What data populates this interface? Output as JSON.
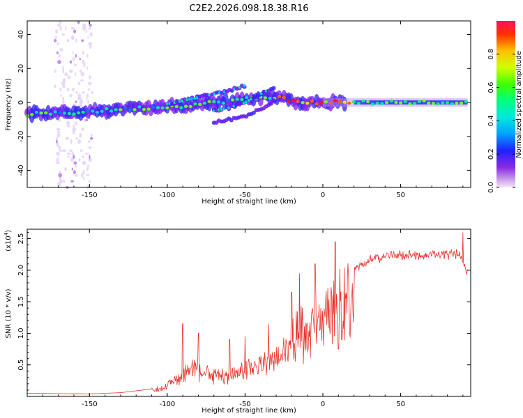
{
  "title": "C2E2.2026.098.18.38.R16",
  "chart_data": [
    {
      "type": "heatmap",
      "name": "spectrogram",
      "xlabel": "Height of straight line (km)",
      "ylabel": "Frequency (Hz)",
      "xlim": [
        -190,
        95
      ],
      "ylim": [
        -50,
        48
      ],
      "xticks": [
        -150,
        -100,
        -50,
        0,
        50
      ],
      "yticks": [
        -40,
        -20,
        0,
        20,
        40
      ],
      "colorbar": {
        "label": "Normalized spectral amplitude",
        "range": [
          0,
          1
        ],
        "ticks": [
          0.0,
          0.2,
          0.4,
          0.6,
          0.8
        ],
        "colormap": "rainbow (magenta-purple-blue-cyan-green-yellow-red)"
      },
      "tracks": [
        {
          "name": "main-branch",
          "x": [
            -190,
            -160,
            -130,
            -110,
            -90,
            -70,
            -50,
            -35,
            -28,
            -20,
            -10,
            0,
            20,
            50,
            93
          ],
          "y": [
            -7,
            -6,
            -4,
            -3,
            -2,
            0,
            2,
            3,
            3,
            1,
            0,
            0,
            0,
            0,
            0
          ]
        },
        {
          "name": "upper-branch",
          "x": [
            -100,
            -85,
            -70,
            -60,
            -50
          ],
          "y": [
            -1,
            2,
            5,
            7,
            10
          ]
        },
        {
          "name": "middle-branch",
          "x": [
            -70,
            -60,
            -50,
            -40,
            -30
          ],
          "y": [
            -5,
            -3,
            0,
            5,
            10
          ]
        },
        {
          "name": "lower-branch",
          "x": [
            -70,
            -60,
            -50,
            -40,
            -30
          ],
          "y": [
            -12,
            -10,
            -8,
            -4,
            2
          ]
        },
        {
          "name": "vertical-noise",
          "x": [
            -170,
            -165,
            -160,
            -155,
            -150
          ],
          "y": [
            -50,
            48,
            -50,
            48,
            -50
          ]
        }
      ]
    },
    {
      "type": "line",
      "name": "snr",
      "xlabel": "Height of straight line (km)",
      "ylabel": "SNR (10 * v/v)",
      "scale_note": "(x10^4)",
      "scale_base": "(x10",
      "scale_exp": "4",
      "scale_close": ")",
      "xlim": [
        -190,
        95
      ],
      "ylim": [
        0,
        2.65
      ],
      "xticks": [
        -150,
        -100,
        -50,
        0,
        50
      ],
      "yticks": [
        0.5,
        1.0,
        1.5,
        2.0,
        2.5
      ],
      "color": "#e8322b",
      "envelope": {
        "x": [
          -190,
          -150,
          -130,
          -110,
          -100,
          -90,
          -85,
          -80,
          -70,
          -60,
          -50,
          -40,
          -30,
          -25,
          -20,
          -15,
          -10,
          -5,
          0,
          5,
          10,
          15,
          20,
          25,
          30,
          40,
          50,
          60,
          70,
          80,
          88,
          93
        ],
        "y": [
          0.05,
          0.04,
          0.06,
          0.12,
          0.2,
          0.45,
          0.6,
          0.5,
          0.45,
          0.4,
          0.55,
          0.65,
          0.75,
          0.95,
          1.1,
          1.35,
          1.3,
          1.45,
          1.55,
          1.7,
          1.85,
          2.0,
          2.05,
          2.15,
          2.22,
          2.28,
          2.3,
          2.3,
          2.3,
          2.3,
          2.32,
          2.0
        ]
      },
      "spikes": [
        {
          "x": -90,
          "y": 1.15
        },
        {
          "x": -80,
          "y": 1.0
        },
        {
          "x": -60,
          "y": 0.9
        },
        {
          "x": -50,
          "y": 0.95
        },
        {
          "x": -35,
          "y": 1.15
        },
        {
          "x": -20,
          "y": 1.65
        },
        {
          "x": -15,
          "y": 1.95
        },
        {
          "x": -5,
          "y": 2.1
        },
        {
          "x": 8,
          "y": 2.45
        },
        {
          "x": 10,
          "y": 0.75
        },
        {
          "x": 12,
          "y": 0.9
        },
        {
          "x": 90,
          "y": 2.6
        }
      ]
    }
  ]
}
